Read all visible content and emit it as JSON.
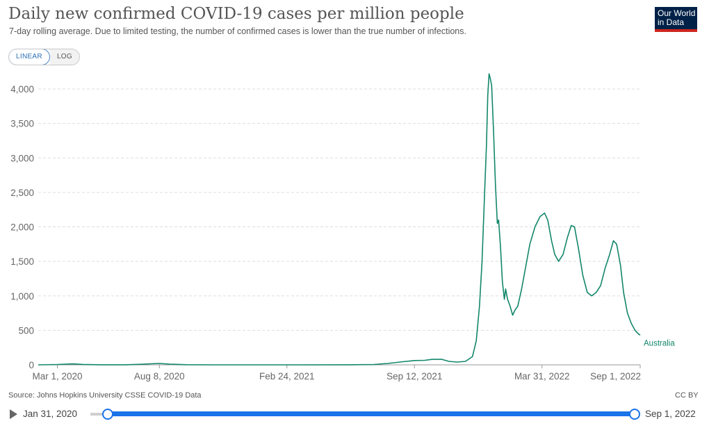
{
  "header": {
    "title": "Daily new confirmed COVID-19 cases per million people",
    "subtitle": "7-day rolling average. Due to limited testing, the number of confirmed cases is lower than the true number of infections.",
    "logo_line1": "Our World",
    "logo_line2": "in Data"
  },
  "scale_toggle": {
    "linear_label": "LINEAR",
    "log_label": "LOG",
    "selected": "LINEAR"
  },
  "chart_data": {
    "type": "line",
    "title": "Daily new confirmed COVID-19 cases per million people",
    "xlabel": "",
    "ylabel": "",
    "ylim": [
      0,
      4200
    ],
    "xlim": [
      "2020-01-31",
      "2022-09-01"
    ],
    "grid": "horizontal dashed",
    "y_ticks": [
      {
        "value": 0,
        "label": "0"
      },
      {
        "value": 500,
        "label": "500"
      },
      {
        "value": 1000,
        "label": "1,000"
      },
      {
        "value": 1500,
        "label": "1,500"
      },
      {
        "value": 2000,
        "label": "2,000"
      },
      {
        "value": 2500,
        "label": "2,500"
      },
      {
        "value": 3000,
        "label": "3,000"
      },
      {
        "value": 3500,
        "label": "3,500"
      },
      {
        "value": 4000,
        "label": "4,000"
      }
    ],
    "x_ticks": [
      {
        "date": "2020-03-01",
        "label": "Mar 1, 2020"
      },
      {
        "date": "2020-08-08",
        "label": "Aug 8, 2020"
      },
      {
        "date": "2021-02-24",
        "label": "Feb 24, 2021"
      },
      {
        "date": "2021-09-12",
        "label": "Sep 12, 2021"
      },
      {
        "date": "2022-03-31",
        "label": "Mar 31, 2022"
      },
      {
        "date": "2022-09-01",
        "label": "Sep 1, 2022"
      }
    ],
    "series": [
      {
        "name": "Australia",
        "color": "#12866a",
        "points": [
          [
            "2020-01-31",
            0
          ],
          [
            "2020-03-01",
            5
          ],
          [
            "2020-03-25",
            14
          ],
          [
            "2020-04-10",
            6
          ],
          [
            "2020-05-10",
            1
          ],
          [
            "2020-06-15",
            1
          ],
          [
            "2020-07-10",
            8
          ],
          [
            "2020-07-25",
            15
          ],
          [
            "2020-08-08",
            20
          ],
          [
            "2020-08-25",
            10
          ],
          [
            "2020-09-20",
            2
          ],
          [
            "2020-11-01",
            0
          ],
          [
            "2021-02-24",
            0
          ],
          [
            "2021-06-01",
            1
          ],
          [
            "2021-07-10",
            5
          ],
          [
            "2021-08-01",
            20
          ],
          [
            "2021-08-25",
            45
          ],
          [
            "2021-09-12",
            62
          ],
          [
            "2021-09-28",
            65
          ],
          [
            "2021-10-10",
            80
          ],
          [
            "2021-10-25",
            80
          ],
          [
            "2021-11-05",
            50
          ],
          [
            "2021-11-18",
            40
          ],
          [
            "2021-12-01",
            50
          ],
          [
            "2021-12-12",
            120
          ],
          [
            "2021-12-18",
            350
          ],
          [
            "2021-12-23",
            850
          ],
          [
            "2021-12-27",
            1500
          ],
          [
            "2021-12-31",
            2500
          ],
          [
            "2022-01-03",
            3200
          ],
          [
            "2022-01-05",
            3900
          ],
          [
            "2022-01-07",
            4220
          ],
          [
            "2022-01-09",
            4150
          ],
          [
            "2022-01-11",
            4050
          ],
          [
            "2022-01-14",
            3400
          ],
          [
            "2022-01-17",
            2600
          ],
          [
            "2022-01-20",
            2050
          ],
          [
            "2022-01-22",
            2100
          ],
          [
            "2022-01-25",
            1700
          ],
          [
            "2022-01-28",
            1200
          ],
          [
            "2022-01-31",
            950
          ],
          [
            "2022-02-02",
            1100
          ],
          [
            "2022-02-05",
            950
          ],
          [
            "2022-02-09",
            850
          ],
          [
            "2022-02-13",
            720
          ],
          [
            "2022-02-17",
            800
          ],
          [
            "2022-02-21",
            850
          ],
          [
            "2022-02-27",
            1100
          ],
          [
            "2022-03-05",
            1400
          ],
          [
            "2022-03-12",
            1750
          ],
          [
            "2022-03-20",
            2000
          ],
          [
            "2022-03-28",
            2150
          ],
          [
            "2022-04-04",
            2200
          ],
          [
            "2022-04-09",
            2100
          ],
          [
            "2022-04-15",
            1800
          ],
          [
            "2022-04-20",
            1600
          ],
          [
            "2022-04-26",
            1500
          ],
          [
            "2022-05-03",
            1600
          ],
          [
            "2022-05-10",
            1850
          ],
          [
            "2022-05-16",
            2020
          ],
          [
            "2022-05-21",
            2000
          ],
          [
            "2022-05-27",
            1700
          ],
          [
            "2022-06-03",
            1300
          ],
          [
            "2022-06-10",
            1050
          ],
          [
            "2022-06-17",
            1000
          ],
          [
            "2022-06-24",
            1050
          ],
          [
            "2022-07-01",
            1150
          ],
          [
            "2022-07-08",
            1400
          ],
          [
            "2022-07-15",
            1600
          ],
          [
            "2022-07-21",
            1800
          ],
          [
            "2022-07-26",
            1750
          ],
          [
            "2022-08-01",
            1450
          ],
          [
            "2022-08-06",
            1050
          ],
          [
            "2022-08-12",
            750
          ],
          [
            "2022-08-18",
            600
          ],
          [
            "2022-08-24",
            500
          ],
          [
            "2022-08-29",
            450
          ],
          [
            "2022-09-01",
            430
          ]
        ]
      }
    ]
  },
  "footer": {
    "source": "Source: Johns Hopkins University CSSE COVID-19 Data",
    "license": "CC BY"
  },
  "timeline": {
    "start_label": "Jan 31, 2020",
    "end_label": "Sep 1, 2022"
  }
}
